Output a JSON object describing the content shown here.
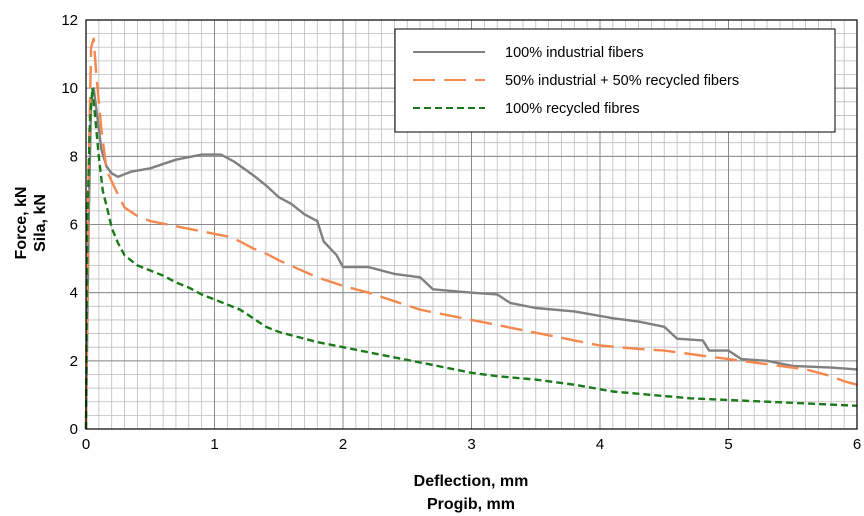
{
  "chart_data": {
    "type": "line",
    "xlabel": [
      "Deflection, mm",
      "Progib, mm"
    ],
    "ylabel": [
      "Force, kN",
      "Sila, kN"
    ],
    "xlim": [
      0,
      6
    ],
    "ylim": [
      0,
      12
    ],
    "x_ticks": [
      "0",
      "1",
      "2",
      "3",
      "4",
      "5",
      "6"
    ],
    "y_ticks": [
      "0",
      "2",
      "4",
      "6",
      "8",
      "10",
      "12"
    ],
    "x_minor_step": 0.1,
    "y_minor_step": 0.4,
    "grid": true,
    "legend_position": "top-right",
    "series": [
      {
        "name": "100% industrial fibers",
        "color": "#808080",
        "dash": "solid",
        "points": [
          [
            0,
            0
          ],
          [
            0.02,
            6
          ],
          [
            0.04,
            9.6
          ],
          [
            0.06,
            10
          ],
          [
            0.08,
            9.4
          ],
          [
            0.12,
            8.2
          ],
          [
            0.16,
            7.7
          ],
          [
            0.2,
            7.5
          ],
          [
            0.25,
            7.4
          ],
          [
            0.35,
            7.55
          ],
          [
            0.5,
            7.65
          ],
          [
            0.7,
            7.9
          ],
          [
            0.9,
            8.05
          ],
          [
            1.05,
            8.05
          ],
          [
            1.15,
            7.85
          ],
          [
            1.3,
            7.45
          ],
          [
            1.4,
            7.15
          ],
          [
            1.5,
            6.8
          ],
          [
            1.6,
            6.6
          ],
          [
            1.7,
            6.3
          ],
          [
            1.8,
            6.1
          ],
          [
            1.85,
            5.5
          ],
          [
            1.95,
            5.1
          ],
          [
            2.0,
            4.75
          ],
          [
            2.2,
            4.75
          ],
          [
            2.4,
            4.55
          ],
          [
            2.6,
            4.45
          ],
          [
            2.7,
            4.1
          ],
          [
            3.0,
            4.0
          ],
          [
            3.2,
            3.95
          ],
          [
            3.3,
            3.7
          ],
          [
            3.5,
            3.55
          ],
          [
            3.8,
            3.45
          ],
          [
            4.1,
            3.25
          ],
          [
            4.3,
            3.15
          ],
          [
            4.5,
            3.0
          ],
          [
            4.6,
            2.65
          ],
          [
            4.8,
            2.6
          ],
          [
            4.85,
            2.3
          ],
          [
            5.0,
            2.3
          ],
          [
            5.1,
            2.05
          ],
          [
            5.3,
            2.0
          ],
          [
            5.5,
            1.85
          ],
          [
            5.8,
            1.8
          ],
          [
            6.0,
            1.75
          ]
        ]
      },
      {
        "name": "50% industrial + 50% recycled fibers",
        "color": "#f4884e",
        "dash": "long",
        "points": [
          [
            0,
            0
          ],
          [
            0.02,
            7.5
          ],
          [
            0.04,
            11.2
          ],
          [
            0.06,
            11.45
          ],
          [
            0.08,
            10.4
          ],
          [
            0.12,
            8.8
          ],
          [
            0.16,
            7.6
          ],
          [
            0.22,
            7.1
          ],
          [
            0.3,
            6.5
          ],
          [
            0.4,
            6.25
          ],
          [
            0.5,
            6.1
          ],
          [
            0.7,
            5.95
          ],
          [
            0.9,
            5.8
          ],
          [
            1.1,
            5.65
          ],
          [
            1.2,
            5.5
          ],
          [
            1.3,
            5.3
          ],
          [
            1.4,
            5.15
          ],
          [
            1.5,
            4.95
          ],
          [
            1.65,
            4.7
          ],
          [
            1.8,
            4.45
          ],
          [
            2.0,
            4.2
          ],
          [
            2.2,
            4.0
          ],
          [
            2.4,
            3.75
          ],
          [
            2.6,
            3.5
          ],
          [
            2.8,
            3.35
          ],
          [
            3.0,
            3.2
          ],
          [
            3.2,
            3.05
          ],
          [
            3.4,
            2.9
          ],
          [
            3.6,
            2.75
          ],
          [
            3.8,
            2.6
          ],
          [
            4.0,
            2.45
          ],
          [
            4.3,
            2.35
          ],
          [
            4.5,
            2.3
          ],
          [
            4.7,
            2.2
          ],
          [
            5.0,
            2.05
          ],
          [
            5.2,
            1.95
          ],
          [
            5.4,
            1.85
          ],
          [
            5.6,
            1.75
          ],
          [
            5.8,
            1.55
          ],
          [
            5.9,
            1.4
          ],
          [
            6.0,
            1.3
          ]
        ]
      },
      {
        "name": "100% recycled fibres",
        "color": "#1a7a1a",
        "dash": "short",
        "points": [
          [
            0,
            0
          ],
          [
            0.01,
            6
          ],
          [
            0.03,
            9.0
          ],
          [
            0.05,
            10.0
          ],
          [
            0.07,
            9.2
          ],
          [
            0.1,
            8.0
          ],
          [
            0.13,
            7.0
          ],
          [
            0.17,
            6.4
          ],
          [
            0.2,
            5.9
          ],
          [
            0.25,
            5.45
          ],
          [
            0.3,
            5.1
          ],
          [
            0.4,
            4.8
          ],
          [
            0.5,
            4.65
          ],
          [
            0.6,
            4.5
          ],
          [
            0.7,
            4.3
          ],
          [
            0.8,
            4.15
          ],
          [
            0.9,
            3.95
          ],
          [
            1.0,
            3.8
          ],
          [
            1.1,
            3.65
          ],
          [
            1.2,
            3.5
          ],
          [
            1.3,
            3.25
          ],
          [
            1.4,
            3.0
          ],
          [
            1.5,
            2.85
          ],
          [
            1.6,
            2.75
          ],
          [
            1.8,
            2.55
          ],
          [
            2.0,
            2.4
          ],
          [
            2.2,
            2.25
          ],
          [
            2.4,
            2.1
          ],
          [
            2.6,
            1.95
          ],
          [
            2.8,
            1.8
          ],
          [
            3.0,
            1.65
          ],
          [
            3.2,
            1.55
          ],
          [
            3.5,
            1.45
          ],
          [
            3.8,
            1.3
          ],
          [
            4.1,
            1.1
          ],
          [
            4.4,
            1.0
          ],
          [
            4.7,
            0.9
          ],
          [
            5.0,
            0.85
          ],
          [
            5.3,
            0.8
          ],
          [
            5.6,
            0.75
          ],
          [
            6.0,
            0.68
          ]
        ]
      }
    ]
  }
}
